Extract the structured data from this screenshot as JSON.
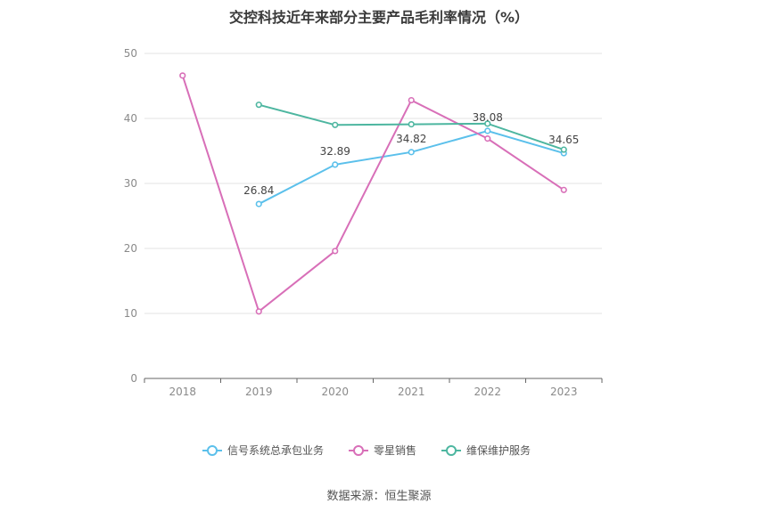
{
  "title": "交控科技近年来部分主要产品毛利率情况（%）",
  "source": "数据来源：恒生聚源",
  "chart_data": {
    "type": "line",
    "title": "交控科技近年来部分主要产品毛利率情况（%）",
    "categories": [
      "2018",
      "2019",
      "2020",
      "2021",
      "2022",
      "2023"
    ],
    "ylim": [
      0,
      50
    ],
    "yticks": [
      0,
      10,
      20,
      30,
      40,
      50
    ],
    "grid": true,
    "legend_position": "bottom",
    "series": [
      {
        "name": "信号系统总承包业务",
        "color": "#5bc0eb",
        "values": [
          null,
          26.84,
          32.89,
          34.82,
          38.08,
          34.65
        ],
        "labels": [
          "",
          "26.84",
          "32.89",
          "34.82",
          "38.08",
          "34.65"
        ]
      },
      {
        "name": "零星销售",
        "color": "#d86fb8",
        "values": [
          46.6,
          10.3,
          19.6,
          42.8,
          36.9,
          29.0
        ],
        "labels": [
          "",
          "",
          "",
          "",
          "",
          ""
        ]
      },
      {
        "name": "维保维护服务",
        "color": "#4db6a0",
        "values": [
          null,
          42.1,
          39.0,
          39.1,
          39.2,
          35.2
        ],
        "labels": [
          "",
          "",
          "",
          "",
          "",
          ""
        ]
      }
    ]
  }
}
